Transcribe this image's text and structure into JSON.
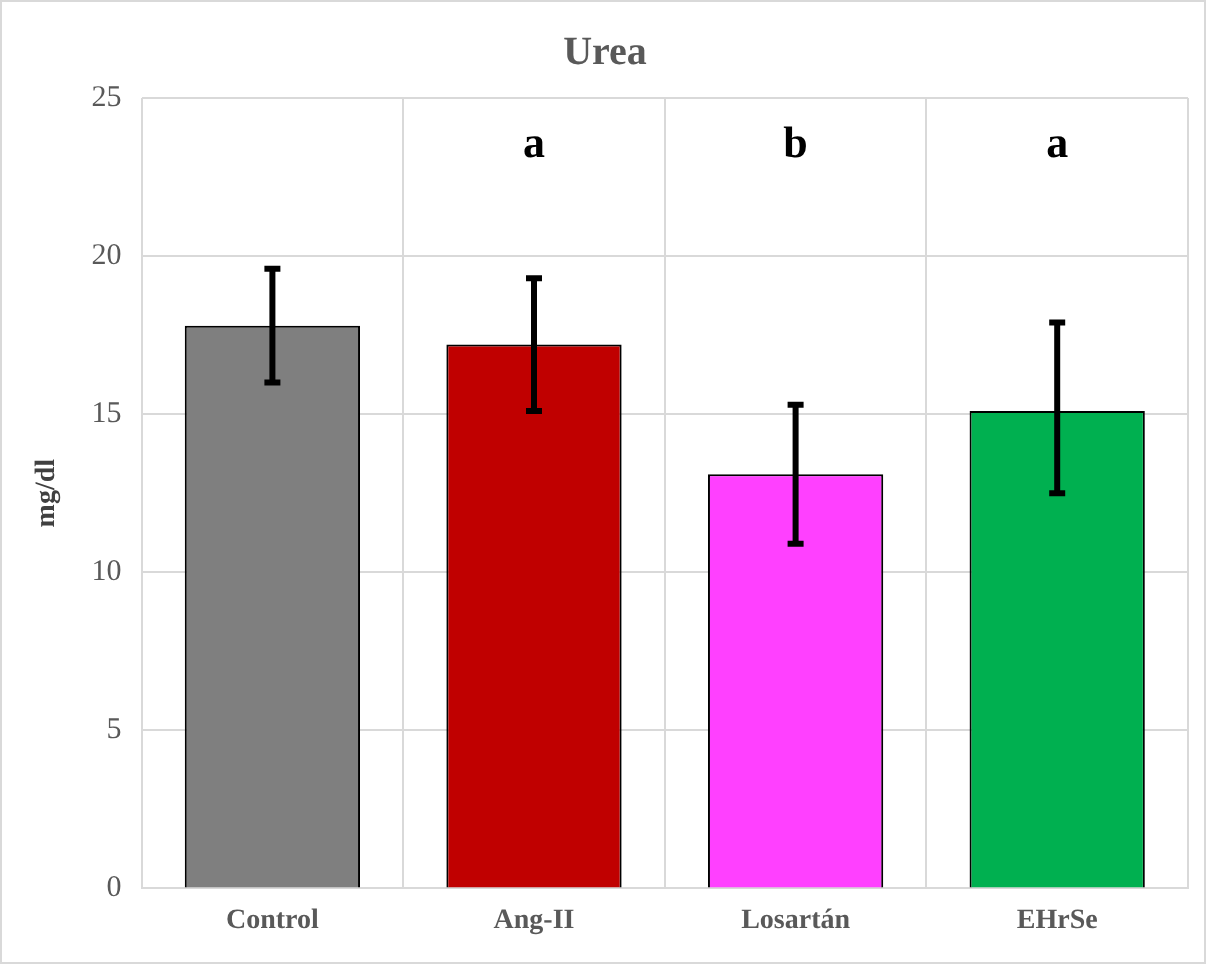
{
  "chart_data": {
    "type": "bar",
    "title": "Urea",
    "ylabel": "mg/dl",
    "categories": [
      "Control",
      "Ang-II",
      "Losartán",
      "EHrSe"
    ],
    "values": [
      17.8,
      17.2,
      13.1,
      15.1
    ],
    "colors": [
      "#7f7f7f",
      "#c00000",
      "#ff40ff",
      "#00b050"
    ],
    "errors": [
      [
        16.0,
        19.6
      ],
      [
        15.1,
        19.3
      ],
      [
        10.9,
        15.3
      ],
      [
        12.5,
        17.9
      ]
    ],
    "ylim": [
      0,
      25
    ],
    "yticks": [
      0,
      5,
      10,
      15,
      20,
      25
    ],
    "grid": true,
    "annotations": [
      "a",
      "b",
      "a"
    ]
  }
}
